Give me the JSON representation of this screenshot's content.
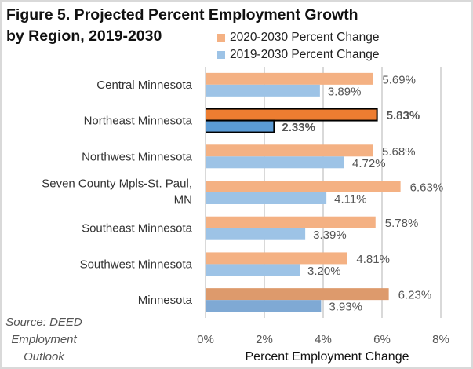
{
  "chart_data": {
    "type": "bar",
    "orientation": "horizontal",
    "title": "Figure 5. Projected Percent Employment Growth\nby Region, 2019-2030",
    "xlabel": "Percent Employment Change",
    "ylabel": "",
    "xlim": [
      0,
      8
    ],
    "xticks": [
      "0%",
      "2%",
      "4%",
      "6%",
      "8%"
    ],
    "grid": true,
    "legend_position": "top-right",
    "categories": [
      [
        "Central Minnesota"
      ],
      [
        "Northeast Minnesota"
      ],
      [
        "Northwest Minnesota"
      ],
      [
        "Seven County Mpls-St. Paul,",
        "MN"
      ],
      [
        "Southeast Minnesota"
      ],
      [
        "Southwest Minnesota"
      ],
      [
        "Minnesota"
      ]
    ],
    "highlighted_category_index": 1,
    "total_category_index": 6,
    "series": [
      {
        "name": "2020-2030 Percent Change",
        "color": "#f4b183",
        "highlight_color": "#ed7d31",
        "total_color": "#dd9a6c",
        "values": [
          5.69,
          5.83,
          5.68,
          6.63,
          5.78,
          4.81,
          6.23
        ],
        "labels": [
          "5.69%",
          "5.83%",
          "5.68%",
          "6.63%",
          "5.78%",
          "4.81%",
          "6.23%"
        ]
      },
      {
        "name": "2019-2030 Percent Change",
        "color": "#9dc3e6",
        "highlight_color": "#5b9bd5",
        "total_color": "#7fa9d4",
        "values": [
          3.89,
          2.33,
          4.72,
          4.11,
          3.39,
          3.2,
          3.93
        ],
        "labels": [
          "3.89%",
          "2.33%",
          "4.72%",
          "4.11%",
          "3.39%",
          "3.20%",
          "3.93%"
        ]
      }
    ]
  },
  "source": "Source: DEED\nEmployment\nOutlook"
}
